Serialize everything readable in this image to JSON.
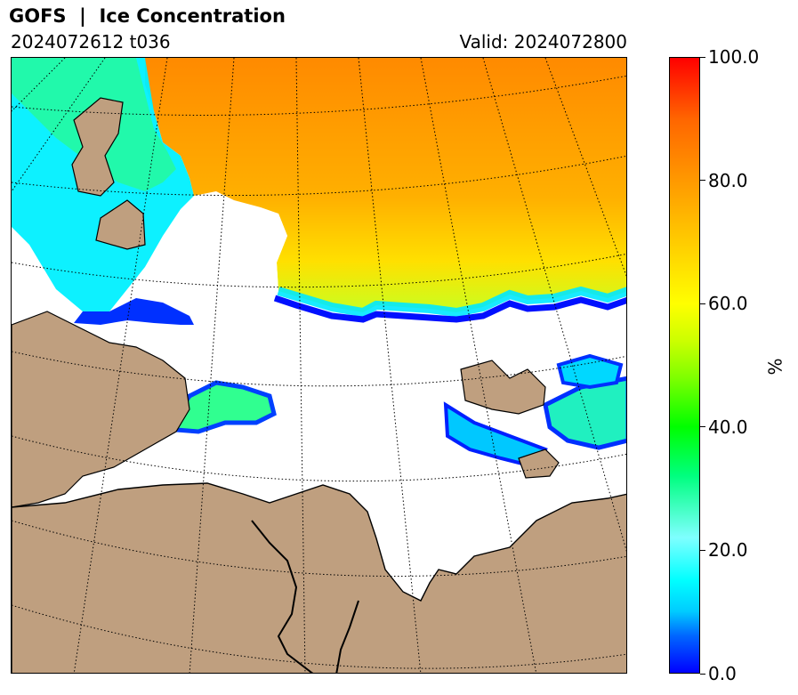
{
  "header": {
    "title": "GOFS  |  Ice Concentration",
    "init_time": "2024072612 t036",
    "valid_time": "Valid: 2024072800"
  },
  "map": {
    "colors": {
      "land": "#bf9f7f",
      "ocean": "#ffffff",
      "coastline": "#000000",
      "graticule": "#000000"
    }
  },
  "colorbar": {
    "min": 0,
    "max": 100,
    "tick_labels": [
      "0.0",
      "20.0",
      "40.0",
      "60.0",
      "80.0",
      "100.0"
    ],
    "unit": "%",
    "colors": {
      "low": "#0000ff",
      "cyan": "#00ffff",
      "green": "#00ff00",
      "yellow": "#ffff00",
      "orange": "#ff9900",
      "high": "#ff0000"
    }
  }
}
